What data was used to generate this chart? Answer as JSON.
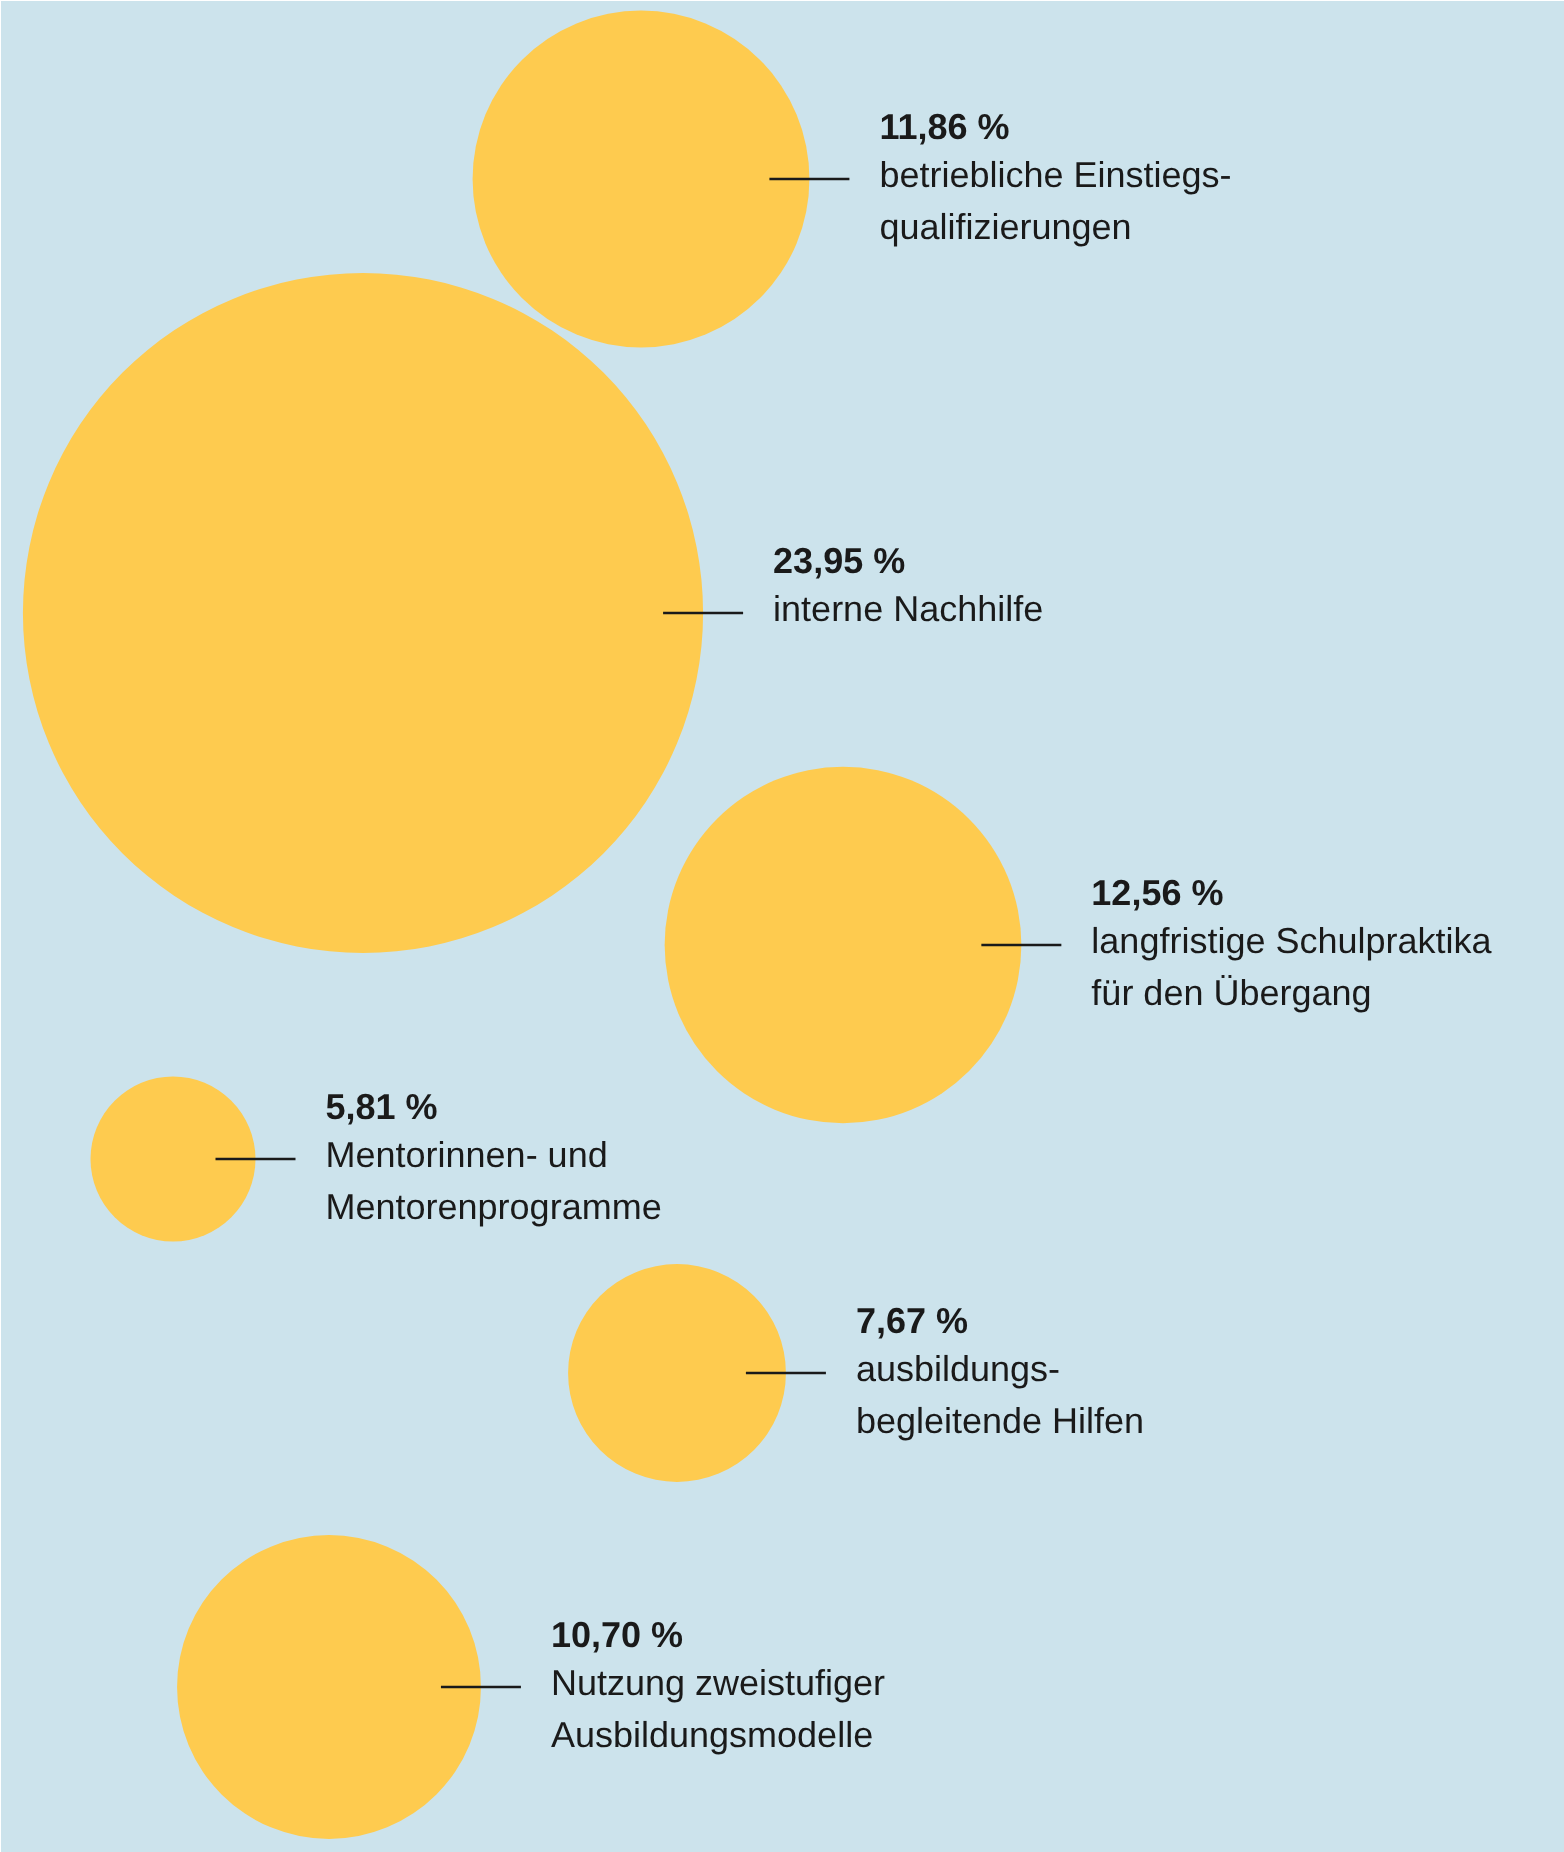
{
  "chart_data": {
    "type": "other",
    "color": "#fecb4f",
    "categories": [
      "betriebliche Einstiegs-\nqualifizierungen",
      "interne Nachhilfe",
      "langfristige Schulpraktika\nfür den Übergang",
      "Mentorinnen- und\nMentorenprogramme",
      "ausbildungs-\nbegleitende Hilfen",
      "Nutzung zweistufiger\nAusbildungsmodelle"
    ],
    "values": [
      11.86,
      23.95,
      12.56,
      5.81,
      7.67,
      10.7
    ],
    "value_labels": [
      "11,86 %",
      "23,95 %",
      "12,56 %",
      "5,81 %",
      "7,67 %",
      "10,70 %"
    ]
  }
}
